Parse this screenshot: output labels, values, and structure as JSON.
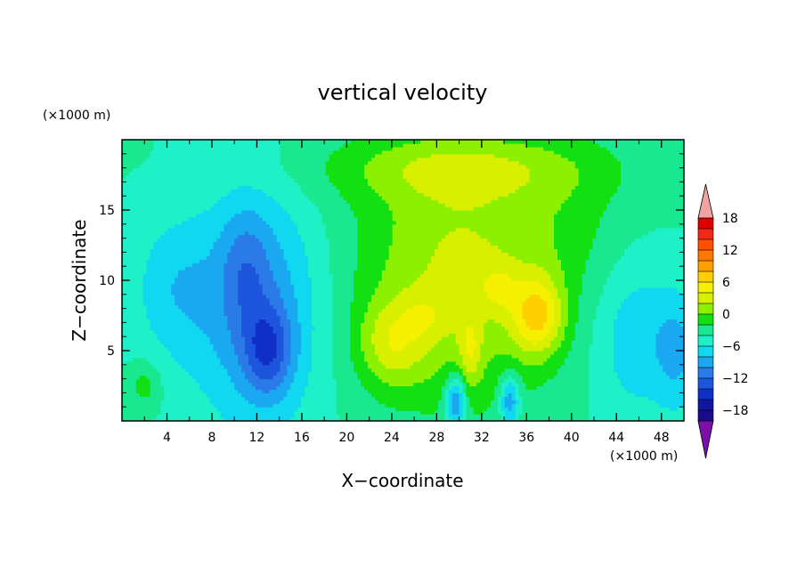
{
  "chart_data": {
    "type": "heatmap",
    "title": "vertical velocity",
    "xlabel": "X−coordinate",
    "ylabel": "Z−coordinate",
    "x_scale_label": "(×1000 m)",
    "y_scale_label": "(×1000 m)",
    "xlim": [
      0,
      50
    ],
    "ylim": [
      0,
      20
    ],
    "x_ticks": [
      4,
      8,
      12,
      16,
      20,
      24,
      28,
      32,
      36,
      40,
      44,
      48
    ],
    "y_ticks": [
      5,
      10,
      15
    ],
    "colorbar": {
      "levels": [
        -20,
        -18,
        -16,
        -14,
        -12,
        -10,
        -8,
        -6,
        -4,
        -2,
        0,
        2,
        4,
        6,
        8,
        10,
        12,
        14,
        16,
        18,
        20
      ],
      "tick_labels": [
        18,
        12,
        6,
        0,
        -6,
        -12,
        -18
      ],
      "colors": [
        "#7b0fa8",
        "#1a0a8c",
        "#10169f",
        "#0f2fc6",
        "#1d55dc",
        "#2a7ae8",
        "#1aa8f0",
        "#11d8f0",
        "#1ef0c8",
        "#19e890",
        "#12e012",
        "#8cf000",
        "#d8f000",
        "#f5f000",
        "#ffd000",
        "#ffa000",
        "#ff7800",
        "#ff5000",
        "#f02814",
        "#e00000",
        "#f2a2a2"
      ]
    },
    "field_summary": {
      "grid": "x 0–50 by z 0–20 (×1000 m)",
      "downdraft_core": {
        "x": 13,
        "z": 5,
        "value": -14
      },
      "updraft_core": {
        "x": 37,
        "z": 7.5,
        "value": 13
      },
      "updraft_core_2": {
        "x": 24,
        "z": 5.5,
        "value": 10
      },
      "background_value": -2,
      "ascending_region_x": [
        19,
        41
      ]
    }
  }
}
